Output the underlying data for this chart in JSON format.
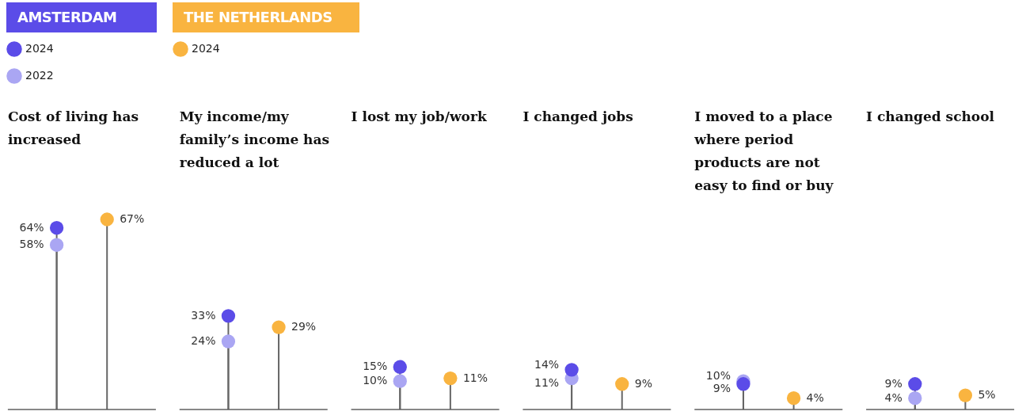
{
  "chart_data": {
    "type": "lollipop",
    "categories": [
      "Cost of living has increased",
      "My income/my family’s income has reduced a lot",
      "I lost my job/work",
      "I changed jobs",
      "I moved to a place where period products are not easy to find or buy",
      "I changed school"
    ],
    "series": [
      {
        "name": "2024",
        "color": "#5b4ce8",
        "values": [
          64,
          33,
          15,
          14,
          9,
          9
        ],
        "value_labels": [
          "64%",
          "33%",
          "15%",
          "14%",
          "9%",
          "9%"
        ]
      },
      {
        "name": "2022",
        "color": "#aaa6f3",
        "values": [
          58,
          24,
          10,
          11,
          10,
          4
        ],
        "value_labels": [
          "58%",
          "24%",
          "10%",
          "11%",
          "10%",
          "4%"
        ]
      },
      {
        "name": "2024",
        "color": "#f9b440",
        "values": [
          67,
          29,
          11,
          9,
          4,
          5
        ],
        "value_labels": [
          "67%",
          "29%",
          "11%",
          "9%",
          "4%",
          "5%"
        ]
      }
    ],
    "annotations": [
      "AMSTERDAM",
      "THE NETHERLANDS"
    ],
    "legend": "top left"
  }
}
